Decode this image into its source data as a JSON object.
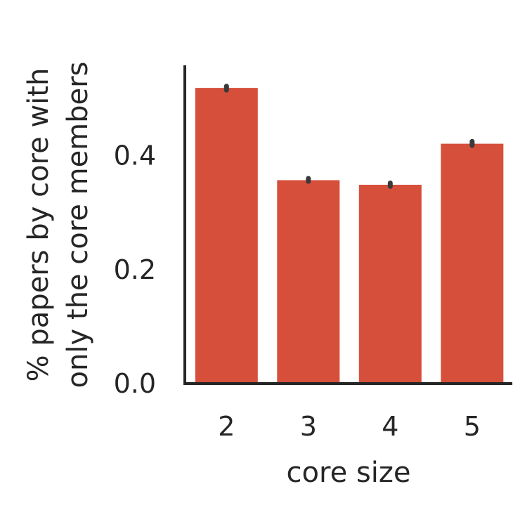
{
  "chart_data": {
    "type": "bar",
    "categories": [
      "2",
      "3",
      "4",
      "5"
    ],
    "values": [
      0.519,
      0.357,
      0.349,
      0.421
    ],
    "error_bars": [
      [
        0.515,
        0.522
      ],
      [
        0.355,
        0.36
      ],
      [
        0.346,
        0.352
      ],
      [
        0.418,
        0.425
      ]
    ],
    "bar_color": "#d64f3a",
    "title": "",
    "xlabel": "core size",
    "ylabel_lines": [
      "% papers by core with",
      "only the core members"
    ],
    "ylim": [
      0.0,
      0.55
    ],
    "yticks": [
      "0.0",
      "0.2",
      "0.4"
    ],
    "grid": false
  }
}
